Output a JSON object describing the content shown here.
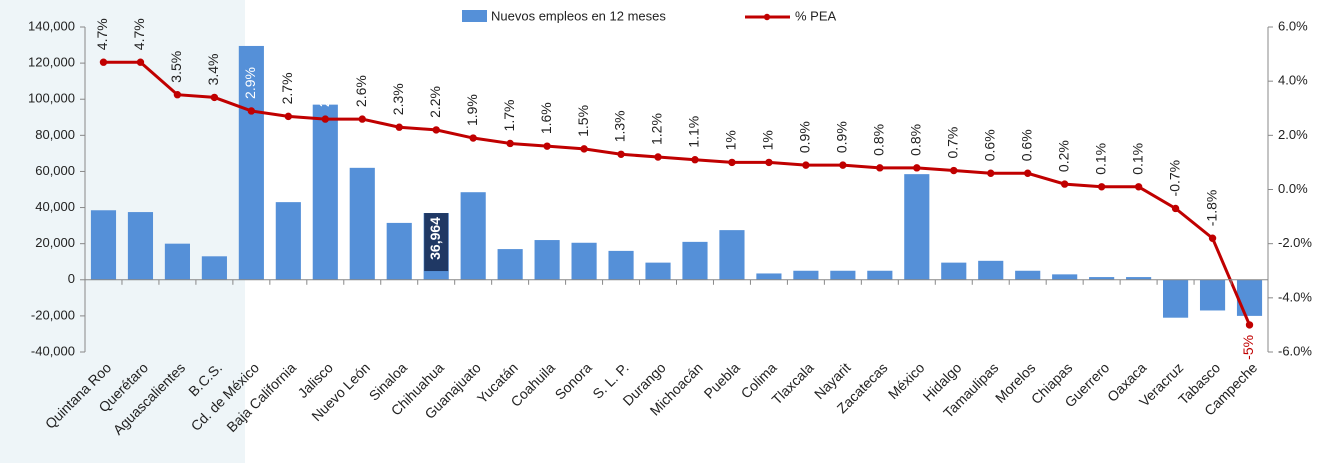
{
  "chart_data": {
    "type": "bar-line",
    "categories": [
      "Quintana Roo",
      "Querétaro",
      "Aguascalientes",
      "B.C.S.",
      "Cd. de México",
      "Baja California",
      "Jalisco",
      "Nuevo León",
      "Sinaloa",
      "Chihuahua",
      "Guanajuato",
      "Yucatán",
      "Coahuila",
      "Sonora",
      "S. L. P.",
      "Durango",
      "Michoacán",
      "Puebla",
      "Colima",
      "Tlaxcala",
      "Nayarit",
      "Zacatecas",
      "México",
      "Hidalgo",
      "Tamaulipas",
      "Morelos",
      "Chiapas",
      "Guerrero",
      "Oaxaca",
      "Veracruz",
      "Tabasco",
      "Campeche"
    ],
    "series": [
      {
        "name": "Nuevos empleos en 12 meses",
        "type": "bar",
        "color": "#5590d8",
        "values": [
          38500,
          37500,
          20000,
          13000,
          129500,
          43000,
          97000,
          62000,
          31500,
          36964,
          48500,
          17000,
          22000,
          20500,
          16000,
          9500,
          21000,
          27500,
          3500,
          5000,
          5000,
          5000,
          58500,
          9500,
          10500,
          5000,
          3000,
          1500,
          1500,
          -21000,
          -17000,
          -20000
        ],
        "value_labels": [
          null,
          null,
          null,
          null,
          null,
          null,
          null,
          null,
          null,
          "36,964",
          null,
          null,
          null,
          null,
          null,
          null,
          null,
          null,
          null,
          null,
          null,
          null,
          null,
          null,
          null,
          null,
          null,
          null,
          null,
          null,
          null,
          null
        ]
      },
      {
        "name": "% PEA",
        "type": "line",
        "axis": "y2",
        "color": "#c00000",
        "values": [
          4.7,
          4.7,
          3.5,
          3.4,
          2.9,
          2.7,
          2.6,
          2.6,
          2.3,
          2.2,
          1.9,
          1.7,
          1.6,
          1.5,
          1.3,
          1.2,
          1.1,
          1,
          1,
          0.9,
          0.9,
          0.8,
          0.8,
          0.7,
          0.6,
          0.6,
          0.2,
          0.1,
          0.1,
          -0.7,
          -1.8,
          -5
        ],
        "value_labels": [
          "4.7%",
          "4.7%",
          "3.5%",
          "3.4%",
          "2.9%",
          "2.7%",
          "2.6%",
          "2.6%",
          "2.3%",
          "2.2%",
          "1.9%",
          "1.7%",
          "1.6%",
          "1.5%",
          "1.3%",
          "1.2%",
          "1.1%",
          "1%",
          "1%",
          "0.9%",
          "0.9%",
          "0.8%",
          "0.8%",
          "0.7%",
          "0.6%",
          "0.6%",
          "0.2%",
          "0.1%",
          "0.1%",
          "-0.7%",
          "-1.8%",
          "-5%"
        ]
      }
    ],
    "ylim": [
      -40000,
      140000
    ],
    "yticks": [
      {
        "value": -40000,
        "label": "-40,000"
      },
      {
        "value": -20000,
        "label": "-20,000"
      },
      0,
      {
        "value": 20000,
        "label": "20,000"
      },
      {
        "value": 40000,
        "label": "40,000"
      },
      {
        "value": 60000,
        "label": "60,000"
      },
      {
        "value": 80000,
        "label": "80,000"
      },
      {
        "value": 100000,
        "label": "100,000"
      },
      {
        "value": 120000,
        "label": "120,000"
      },
      {
        "value": 140000,
        "label": "140,000"
      }
    ],
    "y2lim": [
      -6,
      6
    ],
    "y2ticks": [
      {
        "value": -6,
        "label": "-6.0%"
      },
      {
        "value": -4,
        "label": "-4.0%"
      },
      {
        "value": -2,
        "label": "-2.0%"
      },
      {
        "value": 0,
        "label": "0.0%"
      },
      {
        "value": 2,
        "label": "2.0%"
      },
      {
        "value": 4,
        "label": "4.0%"
      },
      {
        "value": 6,
        "label": "6.0%"
      }
    ],
    "legend": "top",
    "grid": false
  }
}
